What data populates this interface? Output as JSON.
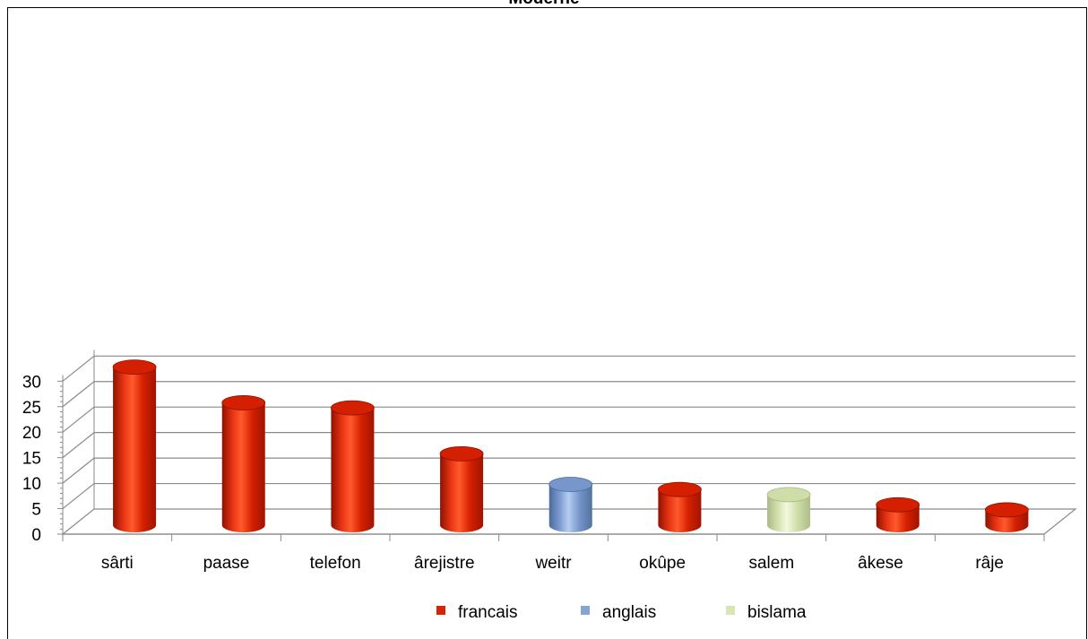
{
  "chart_data": {
    "type": "bar",
    "title": "Moderne",
    "categories": [
      "sârti",
      "paase",
      "telefon",
      "ârejistre",
      "weitr",
      "okûpe",
      "salem",
      "âkese",
      "râje"
    ],
    "values": [
      31,
      24,
      23,
      14,
      8,
      7,
      6,
      4,
      3
    ],
    "groups": [
      "francais",
      "francais",
      "francais",
      "francais",
      "anglais",
      "francais",
      "bislama",
      "francais",
      "francais"
    ],
    "ylim": [
      0,
      30
    ],
    "yticks": [
      0,
      5,
      10,
      15,
      20,
      25,
      30
    ],
    "grid": true,
    "style": "3d-cylinder",
    "legend": {
      "placement": "bottom",
      "entries": [
        {
          "name": "francais",
          "color": "#d62404"
        },
        {
          "name": "anglais",
          "color": "#84a4d4"
        },
        {
          "name": "bislama",
          "color": "#d8e6b4"
        }
      ]
    }
  }
}
